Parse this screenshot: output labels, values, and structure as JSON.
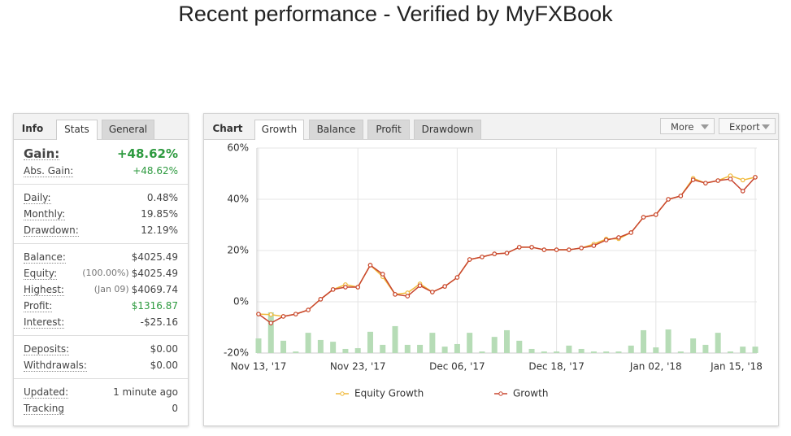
{
  "title": "Recent performance - Verified by MyFXBook",
  "info_panel": {
    "tabs": [
      "Info",
      "Stats",
      "General"
    ],
    "sections": [
      [
        {
          "label": "Gain:",
          "value": "+48.62%"
        },
        {
          "label": "Abs. Gain:",
          "value": "+48.62%"
        }
      ],
      [
        {
          "label": "Daily:",
          "value": "0.48%"
        },
        {
          "label": "Monthly:",
          "value": "19.85%"
        },
        {
          "label": "Drawdown:",
          "value": "12.19%"
        }
      ],
      [
        {
          "label": "Balance:",
          "value": "$4025.49"
        },
        {
          "label": "Equity:",
          "note": "(100.00%)",
          "value": "$4025.49"
        },
        {
          "label": "Highest:",
          "note": "(Jan 09)",
          "value": "$4069.74"
        },
        {
          "label": "Profit:",
          "value": "$1316.87"
        },
        {
          "label": "Interest:",
          "value": "-$25.16"
        }
      ],
      [
        {
          "label": "Deposits:",
          "value": "$0.00"
        },
        {
          "label": "Withdrawals:",
          "value": "$0.00"
        }
      ],
      [
        {
          "label": "Updated:",
          "value": "1 minute ago"
        },
        {
          "label": "Tracking",
          "value": "0"
        }
      ]
    ]
  },
  "chart_panel": {
    "tabs": [
      "Chart",
      "Growth",
      "Balance",
      "Profit",
      "Drawdown"
    ],
    "buttons": [
      "More",
      "Export"
    ]
  },
  "chart_data": {
    "type": "line",
    "categories": [
      "Nov 13, '17",
      null,
      null,
      null,
      null,
      null,
      null,
      null,
      "Nov 23, '17",
      null,
      null,
      null,
      null,
      null,
      null,
      null,
      "Dec 06, '17",
      null,
      null,
      null,
      null,
      null,
      null,
      null,
      "Dec 18, '17",
      null,
      null,
      null,
      null,
      null,
      null,
      null,
      "Jan 02, '18",
      null,
      null,
      null,
      null,
      null,
      null,
      null,
      "Jan 15, '18"
    ],
    "series": [
      {
        "name": "Equity Growth",
        "color": "#f0b93a",
        "values": [
          -4.8,
          -5.0,
          -5.7,
          -4.8,
          -3.2,
          1.0,
          4.8,
          6.7,
          5.7,
          14.3,
          9.8,
          2.9,
          3.5,
          7.0,
          3.8,
          6.0,
          9.5,
          16.5,
          17.5,
          18.7,
          19.0,
          21.3,
          21.3,
          20.3,
          20.3,
          20.3,
          21.0,
          22.5,
          24.5,
          24.6,
          27.0,
          33.0,
          34.0,
          40.0,
          41.3,
          48.2,
          46.3,
          47.3,
          49.2,
          47.5,
          48.6
        ]
      },
      {
        "name": "Growth",
        "color": "#c8452f",
        "values": [
          -4.8,
          -8.3,
          -5.7,
          -4.8,
          -3.2,
          1.0,
          4.8,
          5.7,
          5.7,
          14.3,
          10.8,
          2.9,
          2.2,
          6.3,
          3.8,
          6.0,
          9.5,
          16.5,
          17.5,
          18.7,
          19.0,
          21.3,
          21.3,
          20.3,
          20.3,
          20.3,
          21.0,
          21.9,
          24.1,
          25.1,
          27.0,
          33.0,
          34.0,
          40.0,
          41.3,
          47.6,
          46.3,
          47.3,
          47.9,
          43.2,
          48.6
        ]
      }
    ],
    "bar_color": "#b6dcb6",
    "bar_values": [
      -14.3,
      -4.1,
      -15.2,
      -19.4,
      -12.1,
      -14.9,
      -15.6,
      -18.4,
      -18.1,
      -11.7,
      -16.8,
      -9.5,
      -16.8,
      -16.8,
      -12.1,
      -17.5,
      -16.5,
      -12.1,
      -19.4,
      -13.7,
      -11.1,
      -15.2,
      -18.4,
      -19.4,
      -19.4,
      -17.1,
      -18.4,
      -19.4,
      -19.4,
      -19.4,
      -17.1,
      -11.1,
      -17.8,
      -10.8,
      -19.4,
      -14.3,
      -16.8,
      -12.1,
      -19.4,
      -17.5,
      -17.5
    ],
    "ylim": [
      -20,
      60
    ],
    "yticks": [
      {
        "value": -20,
        "label": "-20%"
      },
      {
        "value": 0,
        "label": "0%"
      },
      {
        "value": 20,
        "label": "20%"
      },
      {
        "value": 40,
        "label": "40%"
      },
      {
        "value": 60,
        "label": "60%"
      }
    ],
    "grid": true
  }
}
